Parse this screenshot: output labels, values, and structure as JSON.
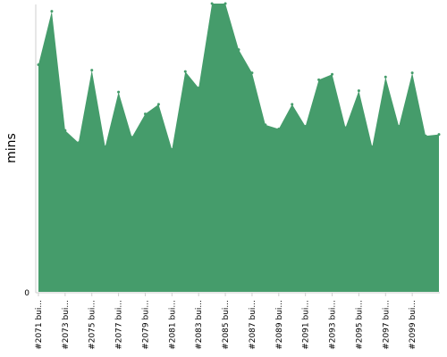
{
  "chart_data": {
    "type": "area",
    "ylabel": "mins",
    "xlabel": "",
    "y_tick_labels": [
      "0"
    ],
    "ylim": [
      0,
      210
    ],
    "grid": false,
    "legend": "none",
    "color": "#459c6b",
    "x_tick_labels": [
      "#2071 bui...",
      "#2073 bui...",
      "#2075 bui...",
      "#2077 bui...",
      "#2079 bui...",
      "#2081 bui...",
      "#2083 bui...",
      "#2085 bui...",
      "#2087 bui...",
      "#2089 bui...",
      "#2091 bui...",
      "#2093 bui...",
      "#2095 bui...",
      "#2097 bui...",
      "#2099 bui..."
    ],
    "values": [
      166,
      205,
      118,
      109,
      162,
      106,
      146,
      113,
      130,
      137,
      104,
      161,
      149,
      214,
      214,
      177,
      160,
      122,
      119,
      137,
      121,
      155,
      159,
      120,
      147,
      106,
      157,
      121,
      160,
      114,
      115
    ]
  }
}
